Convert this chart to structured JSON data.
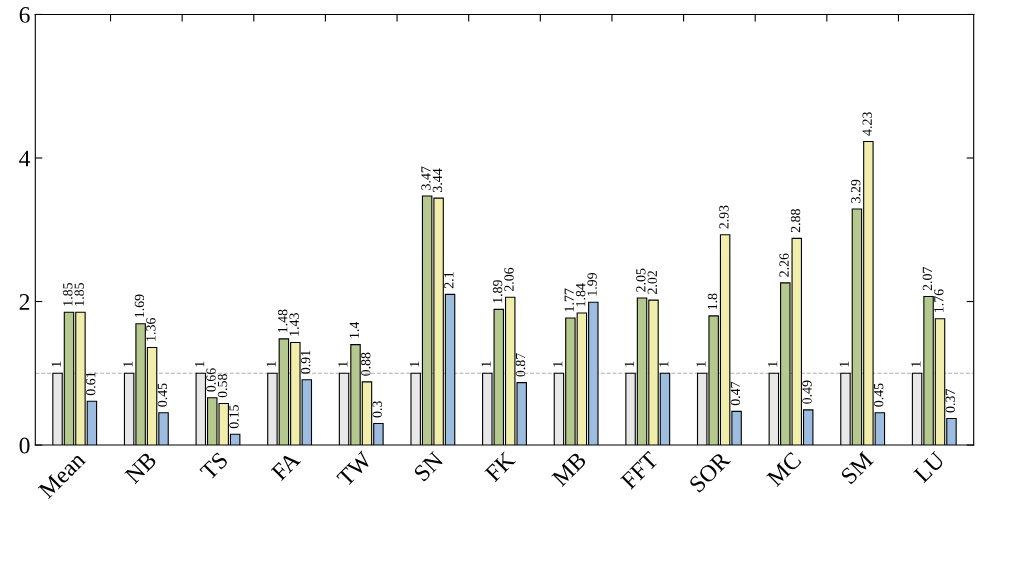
{
  "chart_data": {
    "type": "bar",
    "categories": [
      "Mean",
      "NB",
      "TS",
      "FA",
      "TW",
      "SN",
      "FK",
      "MB",
      "FFT",
      "SOR",
      "MC",
      "SM",
      "LU"
    ],
    "series": [
      {
        "color": "#e8e8e8",
        "values": [
          1,
          1,
          1,
          1,
          1,
          1,
          1,
          1,
          1,
          1,
          1,
          1,
          1
        ]
      },
      {
        "color": "#b5c98e",
        "values": [
          1.85,
          1.69,
          0.66,
          1.48,
          1.4,
          3.47,
          1.89,
          1.77,
          2.05,
          1.8,
          2.26,
          3.29,
          2.07
        ]
      },
      {
        "color": "#f0eeaa",
        "values": [
          1.85,
          1.36,
          0.58,
          1.43,
          0.88,
          3.44,
          2.06,
          1.84,
          2.02,
          2.93,
          2.88,
          4.23,
          1.76
        ]
      },
      {
        "color": "#9dbde0",
        "values": [
          0.61,
          0.45,
          0.15,
          0.91,
          0.3,
          2.1,
          0.87,
          1.99,
          1,
          0.47,
          0.49,
          0.45,
          0.37
        ]
      }
    ],
    "ylim": [
      0,
      6
    ],
    "yticks": [
      0,
      2,
      4,
      6
    ],
    "grid": false,
    "data_labels": true,
    "ref_lines": [
      {
        "axis": "y",
        "value": 1,
        "color": "#b0b0b0",
        "line_style": "dashed"
      }
    ]
  }
}
